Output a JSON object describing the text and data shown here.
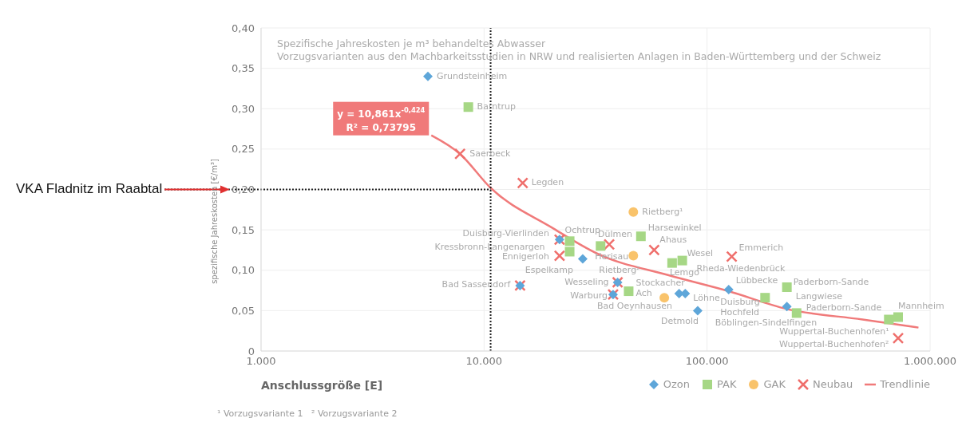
{
  "chart_data": {
    "type": "scatter",
    "title": "Spezifische Jahreskosten je m³ behandeltes Abwasser",
    "subtitle": "Vorzugsvarianten aus den Machbarkeitsstudien in NRW und realisierten Anlagen in Baden-Württemberg und der Schweiz",
    "xlabel": "Anschlussgröße [E]",
    "ylabel": "spezifische Jahreskosten [€/m³]",
    "log": "x",
    "grid": true,
    "legend": "bottom right",
    "xlim": [
      1000,
      1000000
    ],
    "xticks": [
      {
        "value": 1000,
        "label": "1.000"
      },
      {
        "value": 10000,
        "label": "10.000"
      },
      {
        "value": 100000,
        "label": "100.000"
      },
      {
        "value": 1000000,
        "label": "1.000.000"
      }
    ],
    "ylim": [
      0,
      0.4
    ],
    "yticks": [
      {
        "value": 0,
        "label": "0"
      },
      {
        "value": 0.05,
        "label": "0,05"
      },
      {
        "value": 0.1,
        "label": "0,10"
      },
      {
        "value": 0.15,
        "label": "0,15"
      },
      {
        "value": 0.2,
        "label": "0,20"
      },
      {
        "value": 0.25,
        "label": "0,25"
      },
      {
        "value": 0.3,
        "label": "0,30"
      },
      {
        "value": 0.35,
        "label": "0,35"
      },
      {
        "value": 0.4,
        "label": "0,40"
      }
    ],
    "series": [
      {
        "name": "Ozon",
        "marker": "diamond",
        "color": "#5ea6d9",
        "x": [
          5600,
          27700,
          14500,
          21800,
          39700,
          37900,
          74900,
          79800,
          90800,
          125000,
          228000
        ],
        "values": [
          0.34,
          0.114,
          0.081,
          0.138,
          0.085,
          0.07,
          0.071,
          0.071,
          0.05,
          0.076,
          0.055
        ]
      },
      {
        "name": "PAK",
        "marker": "square",
        "color": "#a6d785",
        "x": [
          8500,
          24200,
          24200,
          33300,
          50500,
          44500,
          69700,
          77400,
          182000,
          228000,
          252000,
          653000,
          719000
        ],
        "values": [
          0.302,
          0.136,
          0.123,
          0.13,
          0.142,
          0.074,
          0.109,
          0.112,
          0.066,
          0.079,
          0.047,
          0.039,
          0.042
        ]
      },
      {
        "name": "GAK",
        "marker": "circle",
        "color": "#f9c36b",
        "x": [
          46700,
          46700,
          64300
        ],
        "values": [
          0.172,
          0.118,
          0.066
        ]
      },
      {
        "name": "Neubau",
        "marker": "cross",
        "color": "#ef6f6c",
        "x": [
          7800,
          14900,
          21800,
          21800,
          36400,
          57900,
          129000,
          14500,
          39700,
          37900,
          719000
        ],
        "values": [
          0.244,
          0.208,
          0.138,
          0.118,
          0.132,
          0.125,
          0.117,
          0.081,
          0.085,
          0.07,
          0.016
        ]
      },
      {
        "name": "Trendlinie",
        "type": "line",
        "marker": "none",
        "line_style": "solid",
        "color": "#f07a7a",
        "x": [
          5800,
          7800,
          10700,
          20100,
          32500,
          66800,
          125000,
          228000,
          498000,
          887000
        ],
        "values": [
          0.267,
          0.244,
          0.202,
          0.153,
          0.12,
          0.094,
          0.074,
          0.052,
          0.039,
          0.029
        ]
      }
    ],
    "ref_lines": [
      {
        "axis": "x",
        "value": 10700,
        "line_style": "dotted",
        "color": "#222222"
      },
      {
        "axis": "y",
        "value": 0.2,
        "line_style": "dotted",
        "color": "#222222",
        "label": "VKA Fladnitz im Raabtal"
      }
    ],
    "annotations": [
      "y = 10,861x$^{-0,424}$",
      "R² = 0,73795",
      {
        "text": "Grundsteinheim",
        "x": 5600,
        "y": 0.34
      },
      {
        "text": "Barntrup",
        "x": 8500,
        "y": 0.302
      },
      {
        "text": "Saerbeck",
        "x": 7800,
        "y": 0.244
      },
      {
        "text": "Legden",
        "x": 14900,
        "y": 0.208
      },
      {
        "text": "Rietberg¹",
        "x": 46700,
        "y": 0.172
      },
      {
        "text": "Ochtrup",
        "x": 24200,
        "y": 0.136
      },
      {
        "text": "Harsewinkel",
        "x": 50500,
        "y": 0.142
      },
      {
        "text": "Duisburg-Vierlinden",
        "x": 21800,
        "y": 0.138
      },
      {
        "text": "Dülmen",
        "x": 36400,
        "y": 0.132
      },
      {
        "text": "Ahaus",
        "x": 57900,
        "y": 0.125
      },
      {
        "text": "Kressbronn-Langenargen",
        "x": 24200,
        "y": 0.123
      },
      {
        "text": "Emmerich",
        "x": 129000,
        "y": 0.117
      },
      {
        "text": "Wesel",
        "x": 77400,
        "y": 0.112
      },
      {
        "text": "Ennigerloh",
        "x": 21800,
        "y": 0.118
      },
      {
        "text": "Herisau",
        "x": 46700,
        "y": 0.118
      },
      {
        "text": "Rheda-Wiedenbrück",
        "x": 129000,
        "y": 0.117
      },
      {
        "text": "Espelkamp",
        "x": 27700,
        "y": 0.114
      },
      {
        "text": "Rietberg²",
        "x": 46700,
        "y": 0.118
      },
      {
        "text": "Lemgo",
        "x": 69700,
        "y": 0.109
      },
      {
        "text": "Bad Sassendorf",
        "x": 14500,
        "y": 0.081
      },
      {
        "text": "Wesseling",
        "x": 39700,
        "y": 0.085
      },
      {
        "text": "Stockacher",
        "x": 44500,
        "y": 0.074
      },
      {
        "text": "Lübbecke",
        "x": 125000,
        "y": 0.076
      },
      {
        "text": "Paderborn-Sande",
        "x": 228000,
        "y": 0.079
      },
      {
        "text": "Warburg",
        "x": 37900,
        "y": 0.07
      },
      {
        "text": "Ach",
        "x": 44500,
        "y": 0.074
      },
      {
        "text": "Langwiese",
        "x": 252000,
        "y": 0.047
      },
      {
        "text": "Löhne",
        "x": 79800,
        "y": 0.071
      },
      {
        "text": "Duisburg",
        "x": 182000,
        "y": 0.066
      },
      {
        "text": "Hochfeld",
        "x": 182000,
        "y": 0.066
      },
      {
        "text": "Mannheim",
        "x": 719000,
        "y": 0.042
      },
      {
        "text": "Bad Oeynhausen",
        "x": 64300,
        "y": 0.066
      },
      {
        "text": "Paderborn-Sande",
        "x": 228000,
        "y": 0.055
      },
      {
        "text": "Detmold",
        "x": 90800,
        "y": 0.05
      },
      {
        "text": "Böblingen-Sindelfingen",
        "x": 228000,
        "y": 0.055
      },
      {
        "text": "Wuppertal-Buchenhofen¹",
        "x": 653000,
        "y": 0.039
      },
      {
        "text": "Wuppertal-Buchenhofen²",
        "x": 719000,
        "y": 0.016
      },
      "¹ Vorzugsvariante 1",
      "² Vorzugsvariante 2"
    ]
  }
}
